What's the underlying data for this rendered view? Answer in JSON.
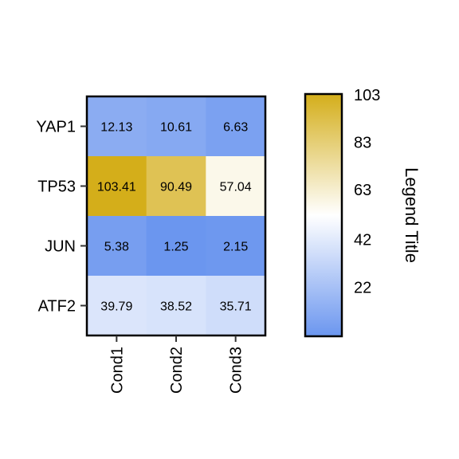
{
  "chart_data": {
    "type": "heatmap",
    "rows": [
      "YAP1",
      "TP53",
      "JUN",
      "ATF2"
    ],
    "columns": [
      "Cond1",
      "Cond2",
      "Cond3"
    ],
    "values": [
      [
        12.13,
        10.61,
        6.63
      ],
      [
        103.41,
        90.49,
        57.04
      ],
      [
        5.38,
        1.25,
        2.15
      ],
      [
        39.79,
        38.52,
        35.71
      ]
    ],
    "cell_labels": [
      [
        "12.13",
        "10.61",
        "6.63"
      ],
      [
        "103.41",
        "90.49",
        "57.04"
      ],
      [
        "5.38",
        "1.25",
        "2.15"
      ],
      [
        "39.79",
        "38.52",
        "35.71"
      ]
    ],
    "color_scale": {
      "low_color": "#6b96ef",
      "mid_color": "#ffffff",
      "high_color": "#d4ae1a",
      "min": 1.25,
      "mid": 52.33,
      "max": 103.41
    },
    "legend": {
      "title": "Legend Title",
      "ticks": [
        103,
        83,
        63,
        42,
        22
      ],
      "placement": "right"
    }
  }
}
